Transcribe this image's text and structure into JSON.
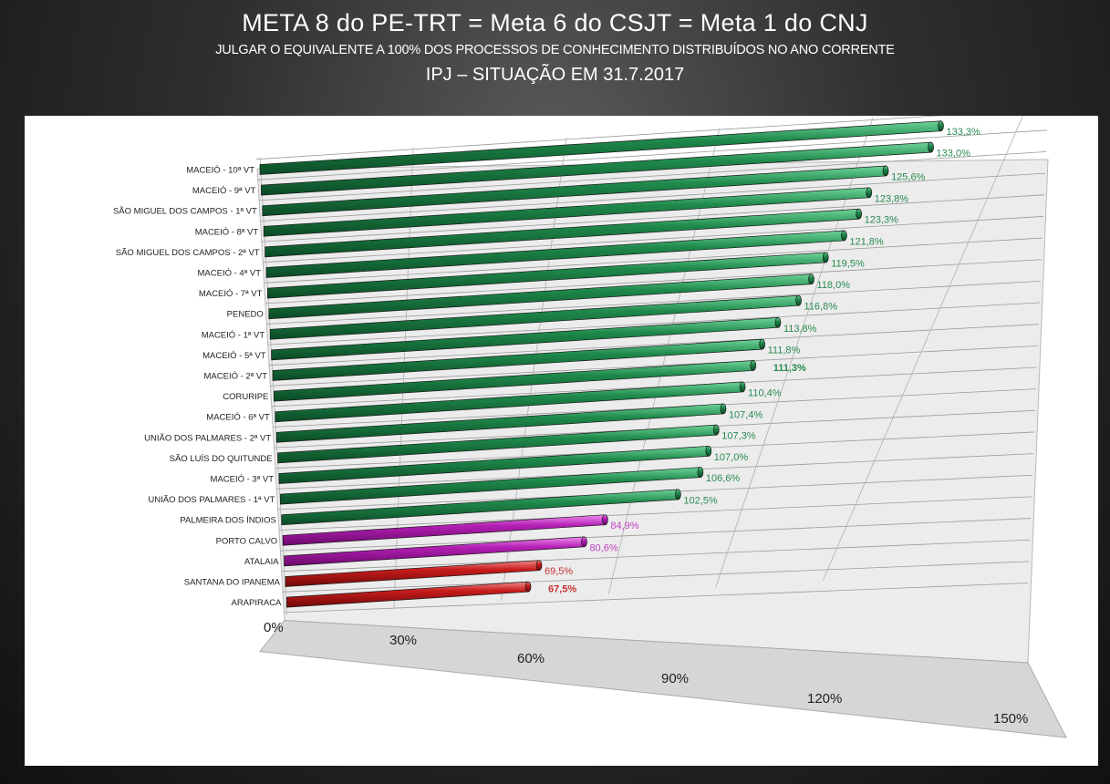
{
  "header": {
    "title": "META 8 do PE-TRT = Meta 6 do CSJT = Meta 1 do CNJ",
    "subtitle": "JULGAR O EQUIVALENTE A 100% DOS PROCESSOS  DE CONHECIMENTO DISTRIBUÍDOS NO ANO CORRENTE",
    "subtitle2": "IPJ – SITUAÇÃO EM 31.7.2017"
  },
  "colors": {
    "green": "#1e7a45",
    "magenta": "#b020b0",
    "red": "#c01818",
    "panel": "#ffffff"
  },
  "chart_data": {
    "type": "bar",
    "orientation": "horizontal",
    "style": "3d-perspective",
    "categories": [
      "MACEIÓ - 10ª VT",
      "MACEIÓ - 9ª VT",
      "SÃO MIGUEL DOS CAMPOS - 1ª VT",
      "MACEIÓ - 8ª VT",
      "SÃO MIGUEL DOS CAMPOS - 2ª VT",
      "MACEIÓ - 4ª VT",
      "MACEIÓ - 7ª VT",
      "PENEDO",
      "MACEIÓ - 1ª VT",
      "MACEIÓ - 5ª VT",
      "MACEIÓ - 2ª VT",
      "CORURIPE",
      "MACEIÓ - 6ª VT",
      "UNIÃO DOS PALMARES - 2ª VT",
      "SÃO LUÍS DO QUITUNDE",
      "MACEIÓ - 3ª VT",
      "UNIÃO DOS PALMARES - 1ª VT",
      "PALMEIRA DOS ÍNDIOS",
      "PORTO CALVO",
      "ATALAIA",
      "SANTANA DO IPANEMA",
      "ARAPIRACA"
    ],
    "values": [
      133.3,
      133.0,
      125.6,
      123.8,
      123.3,
      121.8,
      119.5,
      118.0,
      116.8,
      113.8,
      111.8,
      111.3,
      110.4,
      107.4,
      107.3,
      107.0,
      106.6,
      102.5,
      84.9,
      80.6,
      69.5,
      67.5
    ],
    "value_labels": [
      "133,3%",
      "133,0%",
      "125,6%",
      "123,8%",
      "123,3%",
      "121,8%",
      "119,5%",
      "118,0%",
      "116,8%",
      "113,8%",
      "111,8%",
      "111,3%",
      "110,4%",
      "107,4%",
      "107,3%",
      "107,0%",
      "106,6%",
      "102,5%",
      "84,9%",
      "80,6%",
      "69,5%",
      "67,5%"
    ],
    "bar_colors": [
      "green",
      "green",
      "green",
      "green",
      "green",
      "green",
      "green",
      "green",
      "green",
      "green",
      "green",
      "green",
      "green",
      "green",
      "green",
      "green",
      "green",
      "green",
      "magenta",
      "magenta",
      "red",
      "red"
    ],
    "highlight_labels": [
      "111,3%",
      "67,5%"
    ],
    "xlim": [
      0,
      150
    ],
    "x_ticks": [
      "0%",
      "30%",
      "60%",
      "90%",
      "120%",
      "150%"
    ],
    "grid": true
  }
}
